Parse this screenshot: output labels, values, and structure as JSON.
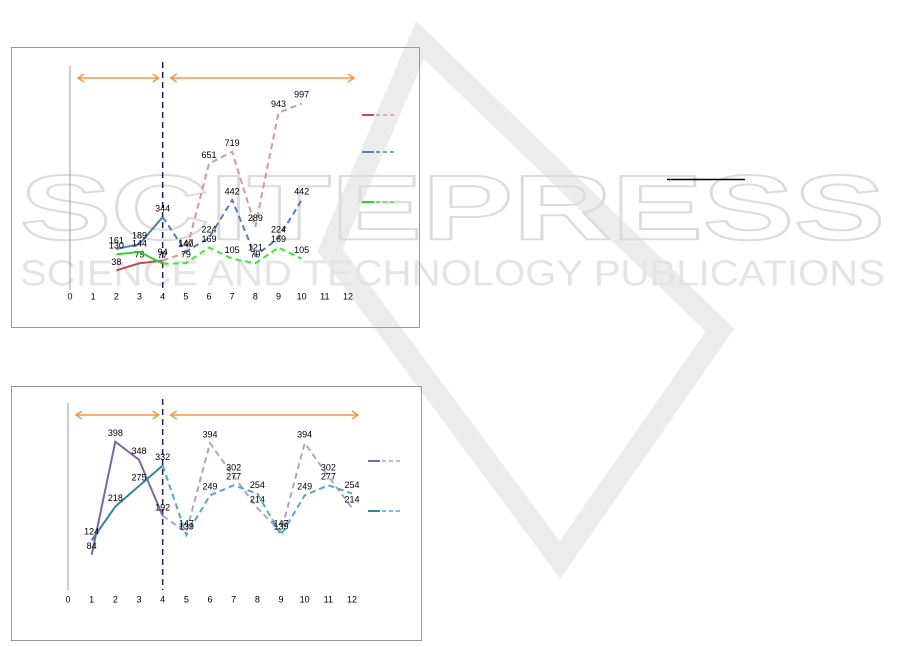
{
  "watermark": {
    "title": "SCITEPRESS",
    "subtitle": "SCIENCE AND TECHNOLOGY PUBLICATIONS"
  },
  "chart_data": [
    {
      "type": "line",
      "x": [
        2,
        3,
        4,
        5,
        6,
        7,
        8,
        9,
        10
      ],
      "xlim": [
        0,
        12
      ],
      "xticks": [
        0,
        1,
        2,
        3,
        4,
        5,
        6,
        7,
        8,
        9,
        10,
        11,
        12
      ],
      "ylim": [
        0,
        1200
      ],
      "series": [
        {
          "color": "#c0504d",
          "values": [
            38,
            79,
            94,
            140,
            651,
            719,
            289,
            943,
            997
          ]
        },
        {
          "color": "#4f81bd",
          "values": [
            161,
            189,
            344,
            147,
            224,
            442,
            121,
            224,
            442
          ]
        },
        {
          "color": "#33cc33",
          "values": [
            130,
            144,
            77,
            79,
            169,
            105,
            79,
            169,
            105
          ]
        }
      ]
    },
    {
      "type": "line",
      "x": [
        1,
        2,
        3,
        4,
        5,
        6,
        7,
        8,
        9,
        10,
        11,
        12
      ],
      "xlim": [
        0,
        12
      ],
      "xticks": [
        0,
        1,
        2,
        3,
        4,
        5,
        6,
        7,
        8,
        9,
        10,
        11,
        12
      ],
      "ylim": [
        0,
        500
      ],
      "series": [
        {
          "color": "#8064a2",
          "values": [
            84,
            398,
            348,
            192,
            147,
            394,
            302,
            214,
            147,
            394,
            302,
            214
          ]
        },
        {
          "color": "#31859c",
          "values": [
            124,
            218,
            275,
            332,
            139,
            249,
            277,
            254,
            139,
            249,
            277,
            254
          ]
        }
      ]
    }
  ]
}
